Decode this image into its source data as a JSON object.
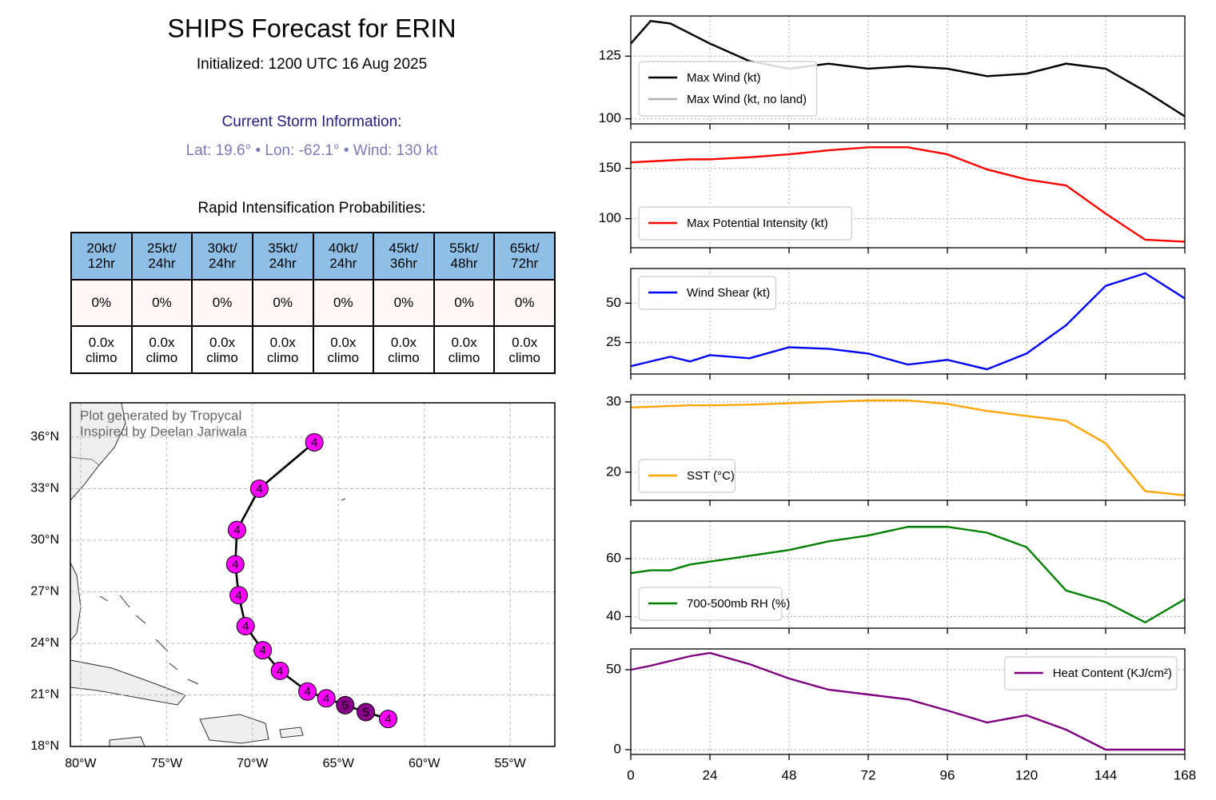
{
  "header": {
    "title": "SHIPS Forecast for ERIN",
    "subtitle": "Initialized: 1200 UTC 16 Aug 2025",
    "storm_heading": "Current Storm Information:",
    "storm_info": "Lat: 19.6° • Lon: -62.1° • Wind: 130 kt"
  },
  "table": {
    "title": "Rapid Intensification Probabilities:",
    "columns": [
      "20kt/\n12hr",
      "25kt/\n24hr",
      "30kt/\n24hr",
      "35kt/\n24hr",
      "40kt/\n24hr",
      "45kt/\n36hr",
      "55kt/\n48hr",
      "65kt/\n72hr"
    ],
    "rows": [
      [
        "0%",
        "0%",
        "0%",
        "0%",
        "0%",
        "0%",
        "0%",
        "0%"
      ],
      [
        "0.0x\nclimo",
        "0.0x\nclimo",
        "0.0x\nclimo",
        "0.0x\nclimo",
        "0.0x\nclimo",
        "0.0x\nclimo",
        "0.0x\nclimo",
        "0.0x\nclimo"
      ]
    ]
  },
  "chart_data": [
    {
      "type": "track",
      "annotations": [
        "Plot generated by Tropycal",
        "Inspired by Deelan Jariwala"
      ],
      "x": [
        -62.1,
        -63.4,
        -64.6,
        -65.7,
        -66.8,
        -68.4,
        -69.4,
        -70.4,
        -70.8,
        -71.0,
        -70.9,
        -69.6,
        -66.4
      ],
      "values": [
        19.6,
        20.0,
        20.4,
        20.8,
        21.2,
        22.4,
        23.6,
        25.0,
        26.8,
        28.6,
        30.6,
        33.0,
        35.7
      ],
      "category": [
        4,
        5,
        5,
        4,
        4,
        4,
        4,
        4,
        4,
        4,
        4,
        4,
        4
      ],
      "category_colors": {
        "4": "#ff00ff",
        "5": "#8b008b"
      },
      "line_color": "#000000",
      "xlim": [
        -80.6,
        -52.4
      ],
      "ylim": [
        18,
        38
      ],
      "xticks": [
        {
          "value": -80,
          "label": "80°W"
        },
        {
          "value": -75,
          "label": "75°W"
        },
        {
          "value": -70,
          "label": "70°W"
        },
        {
          "value": -65,
          "label": "65°W"
        },
        {
          "value": -60,
          "label": "60°W"
        },
        {
          "value": -55,
          "label": "55°W"
        }
      ],
      "yticks": [
        {
          "value": 18,
          "label": "18°N"
        },
        {
          "value": 21,
          "label": "21°N"
        },
        {
          "value": 24,
          "label": "24°N"
        },
        {
          "value": 27,
          "label": "27°N"
        },
        {
          "value": 30,
          "label": "30°N"
        },
        {
          "value": 33,
          "label": "33°N"
        },
        {
          "value": 36,
          "label": "36°N"
        }
      ],
      "grid": true
    },
    {
      "type": "line",
      "x": [
        0,
        6,
        12,
        18,
        24,
        36,
        48,
        60,
        72,
        84,
        96,
        108,
        120,
        132,
        144,
        156,
        168
      ],
      "series": [
        {
          "name": "Max Wind (kt)",
          "color": "#000000",
          "values": [
            130,
            139,
            138,
            134,
            130,
            123,
            120,
            122,
            120,
            121,
            120,
            117,
            118,
            122,
            120,
            111,
            101
          ]
        },
        {
          "name": "Max Wind (kt, no land)",
          "color": "#b0b0b0",
          "values": [
            130,
            139,
            138,
            134,
            130,
            123,
            120,
            122,
            120,
            121,
            120,
            117,
            118,
            122,
            120,
            111,
            101
          ]
        }
      ],
      "xlim": [
        0,
        168
      ],
      "xticks": [
        0,
        24,
        48,
        72,
        96,
        120,
        144,
        168
      ],
      "xtick_labels": false,
      "ylim": [
        98,
        141
      ],
      "yticks": [
        100,
        125
      ],
      "grid": true,
      "legend": "lower left"
    },
    {
      "type": "line",
      "x": [
        0,
        6,
        12,
        18,
        24,
        36,
        48,
        60,
        72,
        84,
        96,
        108,
        120,
        132,
        144,
        156,
        168
      ],
      "series": [
        {
          "name": "Max Potential Intensity (kt)",
          "color": "#ff0000",
          "values": [
            156,
            157,
            158,
            159,
            159,
            161,
            164,
            168,
            171,
            171,
            164,
            149,
            139,
            133,
            105,
            79,
            77
          ]
        }
      ],
      "xlim": [
        0,
        168
      ],
      "xticks": [
        0,
        24,
        48,
        72,
        96,
        120,
        144,
        168
      ],
      "xtick_labels": false,
      "ylim": [
        71,
        176
      ],
      "yticks": [
        100,
        150
      ],
      "grid": true,
      "legend": "lower left"
    },
    {
      "type": "line",
      "x": [
        0,
        6,
        12,
        18,
        24,
        36,
        48,
        60,
        72,
        84,
        96,
        108,
        120,
        132,
        144,
        156,
        168
      ],
      "series": [
        {
          "name": "Wind Shear (kt)",
          "color": "#0000ff",
          "values": [
            10,
            13,
            16,
            13,
            17,
            15,
            22,
            21,
            18,
            11,
            14,
            8,
            18,
            36,
            61,
            69,
            53
          ]
        }
      ],
      "xlim": [
        0,
        168
      ],
      "xticks": [
        0,
        24,
        48,
        72,
        96,
        120,
        144,
        168
      ],
      "xtick_labels": false,
      "ylim": [
        5,
        72
      ],
      "yticks": [
        25,
        50
      ],
      "grid": true,
      "legend": "upper left"
    },
    {
      "type": "line",
      "x": [
        0,
        6,
        12,
        18,
        24,
        36,
        48,
        60,
        72,
        84,
        96,
        108,
        120,
        132,
        144,
        156,
        168
      ],
      "series": [
        {
          "name": "SST (°C)",
          "color": "#ffa500",
          "values": [
            29.2,
            29.3,
            29.4,
            29.5,
            29.5,
            29.6,
            29.8,
            30.0,
            30.2,
            30.2,
            29.7,
            28.7,
            28.0,
            27.3,
            24.1,
            17.3,
            16.7
          ]
        }
      ],
      "xlim": [
        0,
        168
      ],
      "xticks": [
        0,
        24,
        48,
        72,
        96,
        120,
        144,
        168
      ],
      "xtick_labels": false,
      "ylim": [
        16,
        31
      ],
      "yticks": [
        20,
        30
      ],
      "grid": true,
      "legend": "lower left"
    },
    {
      "type": "line",
      "x": [
        0,
        6,
        12,
        18,
        24,
        36,
        48,
        60,
        72,
        84,
        96,
        108,
        120,
        132,
        144,
        156,
        168
      ],
      "series": [
        {
          "name": "700-500mb RH (%)",
          "color": "#008000",
          "values": [
            55,
            56,
            56,
            58,
            59,
            61,
            63,
            66,
            68,
            71,
            71,
            69,
            64,
            49,
            45,
            38,
            46
          ]
        }
      ],
      "xlim": [
        0,
        168
      ],
      "xticks": [
        0,
        24,
        48,
        72,
        96,
        120,
        144,
        168
      ],
      "xtick_labels": false,
      "ylim": [
        36,
        73
      ],
      "yticks": [
        40,
        60
      ],
      "grid": true,
      "legend": "lower left"
    },
    {
      "type": "line",
      "x": [
        0,
        6,
        12,
        18,
        24,
        36,
        48,
        60,
        72,
        84,
        96,
        108,
        120,
        132,
        144,
        156,
        168
      ],
      "series": [
        {
          "name": "Heat Content (KJ/cm²)",
          "color": "#800080",
          "values": [
            50,
            52.5,
            55.5,
            58.5,
            60.5,
            53.5,
            44.5,
            37.5,
            34.5,
            31.5,
            24.5,
            17,
            21.5,
            12.5,
            0,
            0,
            0
          ]
        }
      ],
      "xlim": [
        0,
        168
      ],
      "xticks": [
        0,
        24,
        48,
        72,
        96,
        120,
        144,
        168
      ],
      "xtick_labels": true,
      "ylim": [
        -3,
        63
      ],
      "yticks": [
        0,
        50
      ],
      "grid": true,
      "legend": "upper right"
    }
  ]
}
